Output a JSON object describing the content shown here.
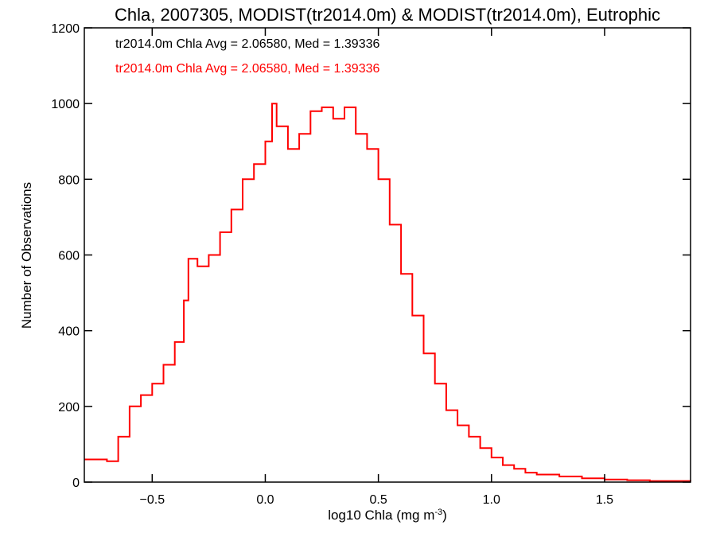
{
  "chart_data": {
    "type": "bar",
    "title": "Chla, 2007305, MODIST(tr2014.0m) & MODIST(tr2014.0m), Eutrophic",
    "xlabel": "log10 Chla (mg m",
    "xlabel_sup": "-3",
    "xlabel_end": ")",
    "ylabel": "Number of Observations",
    "xlim": [
      -0.8,
      1.88
    ],
    "ylim": [
      0,
      1200
    ],
    "grid": false,
    "xticks": [
      -0.5,
      0.0,
      0.5,
      1.0,
      1.5
    ],
    "xtick_labels": [
      "−0.5",
      "0.0",
      "0.5",
      "1.0",
      "1.5"
    ],
    "yticks": [
      0,
      200,
      400,
      600,
      800,
      1000,
      1200
    ],
    "ytick_labels": [
      "0",
      "200",
      "400",
      "600",
      "800",
      "1000",
      "1200"
    ],
    "annotations": [
      {
        "text": "tr2014.0m Chla Avg = 2.06580, Med = 1.39336",
        "color": "#000000"
      },
      {
        "text": "tr2014.0m Chla Avg = 2.06580, Med = 1.39336",
        "color": "#ff0000"
      }
    ],
    "series": [
      {
        "color": "#ff0000",
        "kind": "step",
        "x": [
          -0.8,
          -0.7,
          -0.65,
          -0.6,
          -0.55,
          -0.5,
          -0.45,
          -0.4,
          -0.36,
          -0.34,
          -0.3,
          -0.25,
          -0.2,
          -0.15,
          -0.1,
          -0.05,
          0.0,
          0.03,
          0.05,
          0.1,
          0.15,
          0.2,
          0.25,
          0.3,
          0.35,
          0.4,
          0.45,
          0.5,
          0.55,
          0.6,
          0.65,
          0.7,
          0.75,
          0.8,
          0.85,
          0.9,
          0.95,
          1.0,
          1.05,
          1.1,
          1.15,
          1.2,
          1.3,
          1.4,
          1.5,
          1.6,
          1.7,
          1.88
        ],
        "y": [
          60,
          55,
          120,
          200,
          230,
          260,
          310,
          370,
          480,
          590,
          570,
          600,
          660,
          720,
          800,
          840,
          900,
          1000,
          940,
          880,
          920,
          980,
          990,
          960,
          990,
          920,
          880,
          800,
          680,
          550,
          440,
          340,
          260,
          190,
          150,
          120,
          90,
          65,
          45,
          35,
          25,
          20,
          15,
          10,
          7,
          5,
          3,
          2
        ]
      }
    ]
  }
}
